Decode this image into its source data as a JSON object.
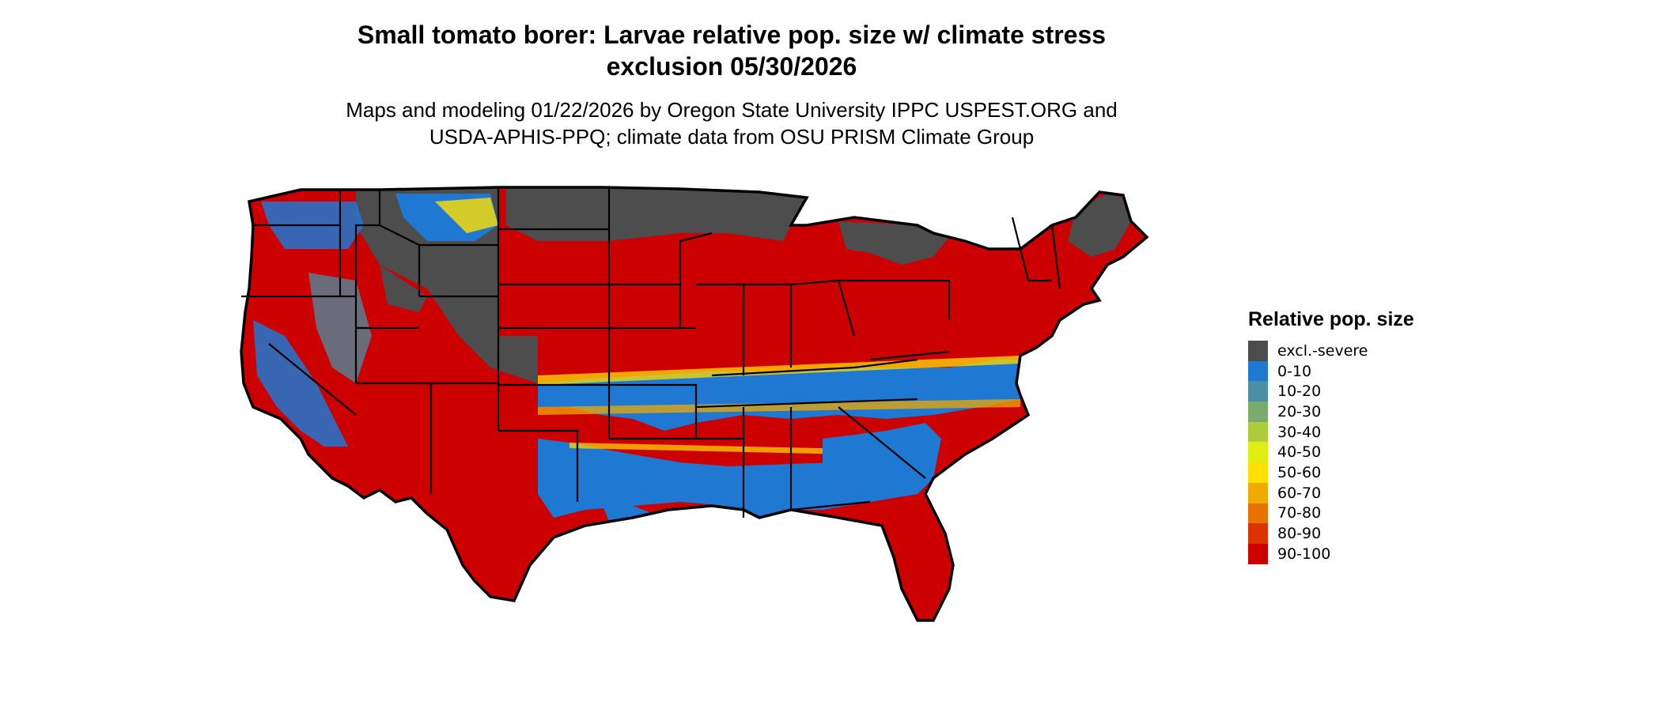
{
  "title_line1": "Small tomato borer: Larvae relative pop. size w/ climate stress",
  "title_line2": "exclusion 05/30/2026",
  "subtitle_line1": "Maps and modeling 01/22/2026 by Oregon State University IPPC USPEST.ORG and",
  "subtitle_line2": "USDA-APHIS-PPQ; climate data from OSU PRISM Climate Group",
  "legend": {
    "title": "Relative pop. size",
    "items": [
      {
        "label": "excl.-severe",
        "color": "#4d4d4d"
      },
      {
        "label": "0-10",
        "color": "#1f78d1"
      },
      {
        "label": "10-20",
        "color": "#4a90a4"
      },
      {
        "label": "20-30",
        "color": "#7aab6e"
      },
      {
        "label": "30-40",
        "color": "#b0cc3a"
      },
      {
        "label": "40-50",
        "color": "#e0ee14"
      },
      {
        "label": "50-60",
        "color": "#ffe000"
      },
      {
        "label": "60-70",
        "color": "#f2a900"
      },
      {
        "label": "70-80",
        "color": "#e67300"
      },
      {
        "label": "80-90",
        "color": "#dd3300"
      },
      {
        "label": "90-100",
        "color": "#cc0000"
      }
    ]
  }
}
